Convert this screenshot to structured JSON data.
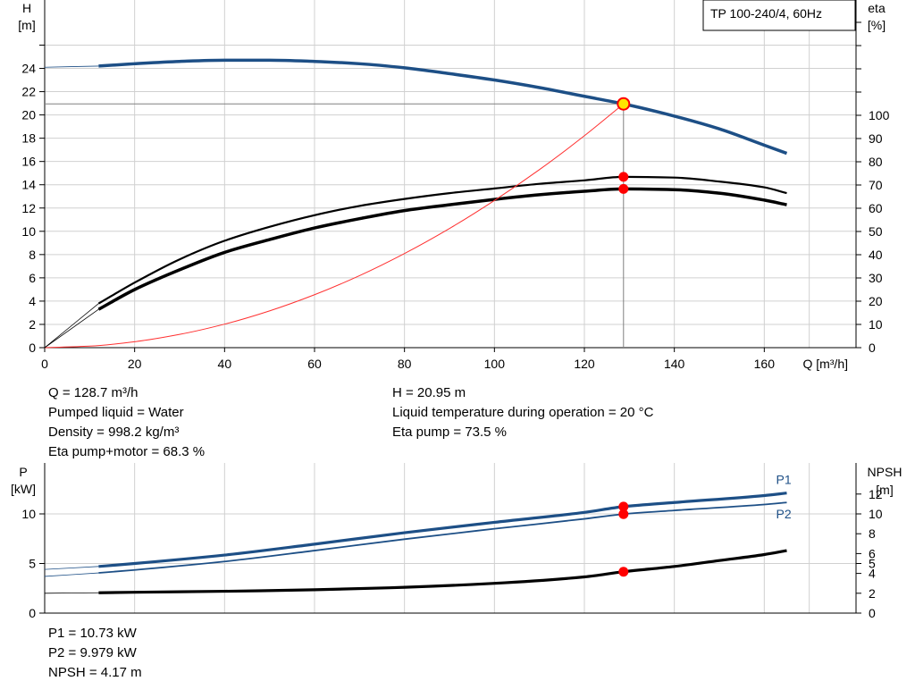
{
  "chart_data": [
    {
      "type": "line",
      "panel": "head-efficiency",
      "title": "TP 100-240/4, 60Hz",
      "xlabel": "Q [m³/h]",
      "ylabel_left": [
        "H",
        "[m]"
      ],
      "ylabel_right": [
        "eta",
        "[%]"
      ],
      "xlim": [
        0,
        178
      ],
      "x_ticks": [
        0,
        20,
        40,
        60,
        80,
        100,
        120,
        140,
        160
      ],
      "ylim_left": [
        0,
        26
      ],
      "y_ticks_left": [
        0,
        2,
        4,
        6,
        8,
        10,
        12,
        14,
        16,
        18,
        20,
        22,
        24
      ],
      "ylim_right": [
        0,
        100
      ],
      "y_ticks_right": [
        0,
        10,
        20,
        30,
        40,
        50,
        60,
        70,
        80,
        90,
        100
      ],
      "grid": true,
      "series": [
        {
          "role": "head",
          "axis": "left",
          "color": "#1d4f86",
          "x": [
            0,
            12,
            20,
            30,
            40,
            50,
            60,
            70,
            80,
            90,
            100,
            110,
            120,
            128.7,
            140,
            150,
            160,
            165
          ],
          "y": [
            24.1,
            24.2,
            24.4,
            24.6,
            24.7,
            24.7,
            24.6,
            24.4,
            24.05,
            23.55,
            23.0,
            22.35,
            21.6,
            20.95,
            19.9,
            18.8,
            17.4,
            16.7
          ]
        },
        {
          "role": "eta-pump",
          "axis": "right",
          "color": "#000000",
          "x": [
            0,
            12,
            20,
            30,
            40,
            50,
            60,
            70,
            80,
            90,
            100,
            110,
            120,
            128.7,
            140,
            150,
            160,
            165
          ],
          "y": [
            0,
            19,
            28,
            38,
            46,
            52,
            57,
            61,
            64,
            66.5,
            68.5,
            70.5,
            72,
            73.5,
            73.2,
            71.5,
            69,
            66.5
          ]
        },
        {
          "role": "eta-pump+motor",
          "axis": "right",
          "color": "#000000",
          "x": [
            12,
            20,
            30,
            40,
            50,
            60,
            70,
            80,
            90,
            100,
            110,
            120,
            128.7,
            140,
            150,
            160,
            165
          ],
          "y": [
            16.5,
            25,
            33.5,
            41,
            46.5,
            51.5,
            55.5,
            59,
            61.5,
            63.8,
            65.8,
            67.3,
            68.3,
            68.0,
            66.5,
            63.5,
            61.5
          ]
        },
        {
          "role": "system-curve",
          "axis": "left",
          "color": "#ff3030",
          "x": [
            0,
            10,
            20,
            30,
            40,
            50,
            60,
            70,
            80,
            90,
            100,
            110,
            120,
            128.7
          ],
          "y": [
            0,
            0.13,
            0.51,
            1.14,
            2.02,
            3.16,
            4.55,
            6.19,
            8.09,
            10.24,
            12.65,
            15.3,
            18.21,
            20.95
          ]
        }
      ],
      "duty_point": {
        "q": 128.7,
        "h": 20.95,
        "eta_pump": 73.5,
        "eta_total": 68.3
      },
      "results": [
        "Q = 128.7 m³/h",
        "Pumped liquid = Water",
        "Density = 998.2 kg/m³",
        "Eta pump+motor = 68.3 %",
        "H = 20.95 m",
        "Liquid temperature during operation = 20 °C",
        "Eta pump = 73.5 %"
      ]
    },
    {
      "type": "line",
      "panel": "power-npsh",
      "ylabel_left": [
        "P",
        "[kW]"
      ],
      "ylabel_right": [
        "NPSH",
        "[m]"
      ],
      "xlim": [
        0,
        178
      ],
      "ylim_left": [
        0,
        13.5
      ],
      "y_ticks_left": [
        0,
        5,
        10
      ],
      "ylim_right": [
        0,
        13.5
      ],
      "y_ticks_right": [
        0,
        2,
        4,
        5,
        6,
        8,
        10,
        12
      ],
      "grid": true,
      "series": [
        {
          "name": "P1",
          "axis": "left",
          "color": "#1d4f86",
          "x": [
            0,
            12,
            20,
            40,
            60,
            80,
            100,
            120,
            128.7,
            140,
            160,
            165
          ],
          "y": [
            4.4,
            4.7,
            5.0,
            5.85,
            6.95,
            8.1,
            9.15,
            10.15,
            10.73,
            11.15,
            11.85,
            12.1
          ]
        },
        {
          "name": "P2",
          "axis": "left",
          "color": "#1d4f86",
          "x": [
            0,
            12,
            20,
            40,
            60,
            80,
            100,
            120,
            128.7,
            140,
            160,
            165
          ],
          "y": [
            3.7,
            4.05,
            4.35,
            5.2,
            6.3,
            7.45,
            8.5,
            9.5,
            9.979,
            10.35,
            10.95,
            11.15
          ]
        },
        {
          "role": "npsh",
          "axis": "right",
          "color": "#000000",
          "x": [
            0,
            12,
            20,
            40,
            60,
            80,
            100,
            120,
            128.7,
            140,
            150,
            160,
            165
          ],
          "y": [
            2.0,
            2.05,
            2.1,
            2.2,
            2.35,
            2.6,
            3.0,
            3.65,
            4.17,
            4.7,
            5.3,
            5.9,
            6.3
          ]
        }
      ],
      "duty_point": {
        "q": 128.7,
        "p1": 10.73,
        "p2": 9.979,
        "npsh": 4.17
      },
      "results": [
        "P1 = 10.73 kW",
        "P2 = 9.979 kW",
        "NPSH = 4.17 m"
      ]
    }
  ]
}
